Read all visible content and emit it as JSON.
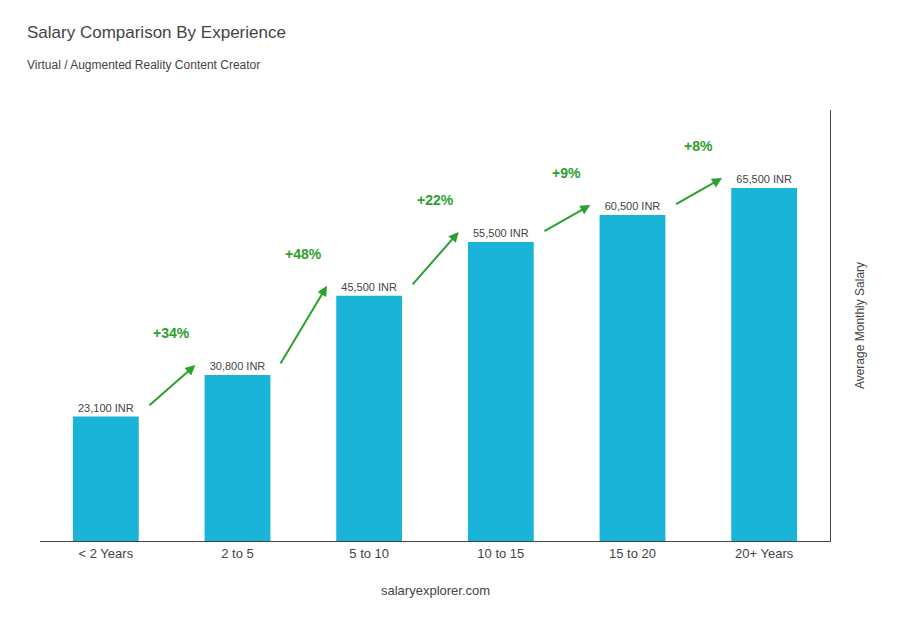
{
  "chart_data": {
    "type": "bar",
    "title": "Salary Comparison By Experience",
    "subtitle": "Virtual / Augmented Reality Content Creator",
    "categories": [
      "< 2 Years",
      "2 to 5",
      "5 to 10",
      "10 to 15",
      "15 to 20",
      "20+ Years"
    ],
    "values": [
      23100,
      30800,
      45500,
      55500,
      60500,
      65500
    ],
    "value_labels": [
      "23,100 INR",
      "30,800 INR",
      "45,500 INR",
      "55,500 INR",
      "60,500 INR",
      "65,500 INR"
    ],
    "data_labels": true,
    "color": "#1ab4d8",
    "ylabel": "Average Monthly Salary",
    "ylim": [
      0,
      80000
    ],
    "grid": false,
    "tick_labels": "x",
    "annotations": [
      {
        "text": "+34%",
        "from": "< 2 Years",
        "to": "2 to 5"
      },
      {
        "text": "+48%",
        "from": "2 to 5",
        "to": "5 to 10"
      },
      {
        "text": "+22%",
        "from": "5 to 10",
        "to": "10 to 15"
      },
      {
        "text": "+9%",
        "from": "10 to 15",
        "to": "15 to 20"
      },
      {
        "text": "+8%",
        "from": "15 to 20",
        "to": "20+ Years"
      }
    ],
    "watermark": "salaryexplorer.com"
  }
}
